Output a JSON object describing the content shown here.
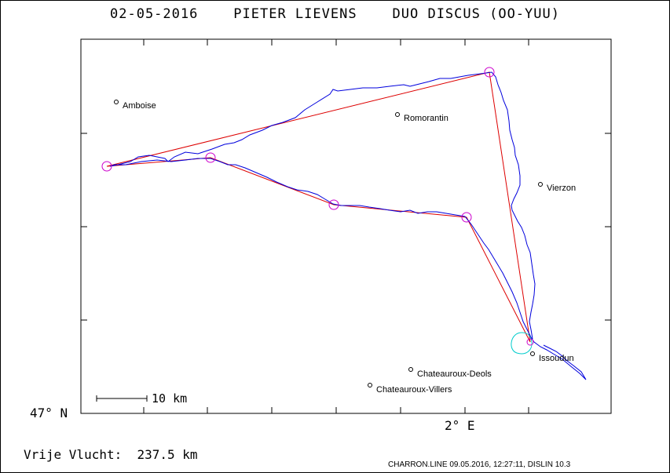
{
  "title": "02-05-2016    PIETER LIEVENS    DUO DISCUS (OO-YUU)",
  "places": [
    {
      "name": "Amboise"
    },
    {
      "name": "Romorantin"
    },
    {
      "name": "Vierzon"
    },
    {
      "name": "Issoudun"
    },
    {
      "name": "Chateauroux-Deols"
    },
    {
      "name": "Chateauroux-Villers"
    }
  ],
  "scale_label": "10 km",
  "lat_label": "47° N",
  "lon_label": "2° E",
  "footer": {
    "distance_label": "Vrije Vlucht:",
    "distance_value": "237.5 km",
    "file_info": "CHARRON.LINE 09.05.2016, 12:27:11, DISLIN 10.3"
  },
  "colors": {
    "track": "#0000dd",
    "course": "#dd0000",
    "turnpoint": "#cc00cc",
    "thermal_circle": "#00cccc"
  }
}
